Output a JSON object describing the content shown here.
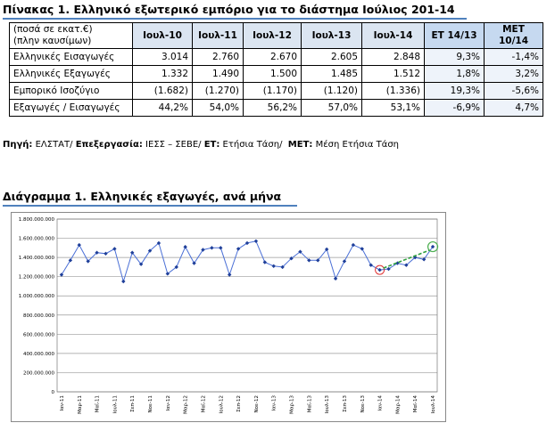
{
  "title": "Πίνακας 1. Ελληνικό εξωτερικό εμπόριο για το διάστημα Ιούλιος 201-14",
  "table": {
    "header": [
      [
        "(ποσά σε εκατ.€)",
        "(πλην καυσίμων)"
      ],
      "Ιουλ-10",
      "Ιουλ-11",
      "Ιουλ-12",
      "Ιουλ-13",
      "Ιουλ-14",
      "ΕΤ 14/13",
      "ΜΕΤ 10/14"
    ],
    "rows": [
      [
        "Ελληνικές Εισαγωγές",
        "3.014",
        "2.760",
        "2.670",
        "2.605",
        "2.848",
        "9,3%",
        "-1,4%"
      ],
      [
        "Ελληνικές Εξαγωγές",
        "1.332",
        "1.490",
        "1.500",
        "1.485",
        "1.512",
        "1,8%",
        "3,2%"
      ],
      [
        "Εμπορικό Ισοζύγιο",
        "(1.682)",
        "(1.270)",
        "(1.170)",
        "(1.120)",
        "(1.336)",
        "19,3%",
        "-5,6%"
      ],
      [
        "Εξαγωγές / Εισαγωγές",
        "44,2%",
        "54,0%",
        "56,2%",
        "57,0%",
        "53,1%",
        "-6,9%",
        "4,7%"
      ]
    ]
  },
  "source": [
    {
      "text": "Πηγή:",
      "bold": true
    },
    {
      "text": " ΕΛΣΤΑΤ/ ",
      "bold": false
    },
    {
      "text": "Επεξεργασία:",
      "bold": true
    },
    {
      "text": " ΙΕΣΣ – ΣΕΒΕ/ ",
      "bold": false
    },
    {
      "text": "ΕΤ:",
      "bold": true
    },
    {
      "text": " Ετήσια Τάση/  ",
      "bold": false
    },
    {
      "text": "ΜΕΤ:",
      "bold": true
    },
    {
      "text": " Μέση Ετήσια Τάση",
      "bold": false
    }
  ],
  "chart_heading": "Διάγραμμα 1. Ελληνικές εξαγωγές, ανά μήνα",
  "chart_data": {
    "type": "line",
    "categories": [
      "Ιαν-11",
      null,
      "Μαρ-11",
      null,
      "Μαϊ-11",
      null,
      "Ιουλ-11",
      null,
      "Σεπ-11",
      null,
      "Νοε-11",
      null,
      "Ιαν-12",
      null,
      "Μαρ-12",
      null,
      "Μαϊ-12",
      null,
      "Ιουλ-12",
      null,
      "Σεπ-12",
      null,
      "Νοε-12",
      null,
      "Ιαν-13",
      null,
      "Μαρ-13",
      null,
      "Μαϊ-13",
      null,
      "Ιουλ-13",
      null,
      "Σεπ-13",
      null,
      "Νοε-13",
      null,
      "Ιαν-14",
      null,
      "Μαρ-14",
      null,
      "Μαϊ-14",
      null,
      "Ιουλ-14"
    ],
    "series": [
      {
        "color": "#1f3f99",
        "values": [
          1220000000,
          1370000000,
          1530000000,
          1360000000,
          1450000000,
          1440000000,
          1490000000,
          1150000000,
          1450000000,
          1330000000,
          1470000000,
          1550000000,
          1230000000,
          1300000000,
          1510000000,
          1340000000,
          1480000000,
          1500000000,
          1500000000,
          1220000000,
          1490000000,
          1550000000,
          1570000000,
          1350000000,
          1310000000,
          1300000000,
          1390000000,
          1460000000,
          1370000000,
          1370000000,
          1485000000,
          1180000000,
          1360000000,
          1530000000,
          1490000000,
          1320000000,
          1270000000,
          1280000000,
          1340000000,
          1320000000,
          1400000000,
          1380000000,
          1512000000
        ]
      }
    ],
    "ylim": [
      0,
      1800000000
    ],
    "yticks": [
      0,
      {
        "value": 200000000,
        "label": "200.000.000"
      },
      {
        "value": 400000000,
        "label": "400.000.000"
      },
      {
        "value": 600000000,
        "label": "600.000.000"
      },
      {
        "value": 800000000,
        "label": "800.000.000"
      },
      {
        "value": 1000000000,
        "label": "1.000.000.000"
      },
      {
        "value": 1200000000,
        "label": "1.200.000.000"
      },
      {
        "value": 1400000000,
        "label": "1.400.000.000"
      },
      {
        "value": 1600000000,
        "label": "1.600.000.000"
      },
      {
        "value": 1800000000,
        "label": "1.800.000.000"
      }
    ],
    "grid": true
  }
}
